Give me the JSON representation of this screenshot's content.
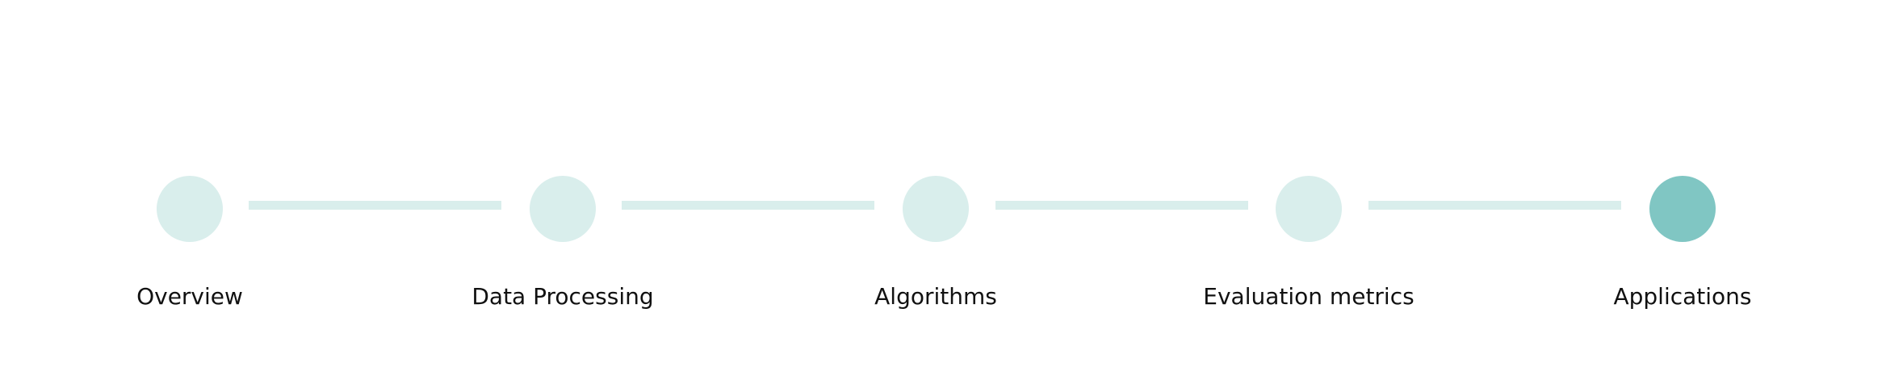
{
  "stepper": {
    "steps": [
      {
        "label": "Overview",
        "active": false
      },
      {
        "label": "Data Processing",
        "active": false
      },
      {
        "label": "Algorithms",
        "active": false
      },
      {
        "label": "Evaluation metrics",
        "active": false
      },
      {
        "label": "Applications",
        "active": true
      }
    ]
  },
  "colors": {
    "inactive": "#d9eeec",
    "active": "#80c6c3",
    "label_text": "#111111",
    "background": "#ffffff"
  }
}
